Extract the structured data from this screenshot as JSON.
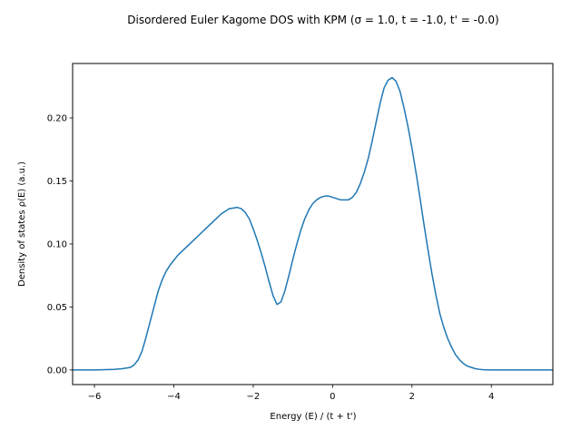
{
  "chart_data": {
    "type": "line",
    "title": "Disordered Euler Kagome DOS with KPM (σ = 1.0, t = -1.0, t' = -0.0)",
    "xlabel": "Energy (E) / (t + t')",
    "ylabel": "Density of states ρ(E) (a.u.)",
    "xlim": [
      -6.55,
      5.55
    ],
    "ylim": [
      -0.0116,
      0.2432
    ],
    "xticks": [
      -6,
      -4,
      -2,
      0,
      2,
      4
    ],
    "xtick_labels": [
      "−6",
      "−4",
      "−2",
      "0",
      "2",
      "4"
    ],
    "yticks": [
      0.0,
      0.05,
      0.1,
      0.15,
      0.2
    ],
    "ytick_labels": [
      "0.00",
      "0.05",
      "0.10",
      "0.15",
      "0.20"
    ],
    "grid": false,
    "legend": "none",
    "color": "#1f77b4",
    "series": [
      {
        "x": [
          -6.55,
          -6.0,
          -5.5,
          -5.3,
          -5.1,
          -5.0,
          -4.9,
          -4.8,
          -4.7,
          -4.6,
          -4.5,
          -4.4,
          -4.3,
          -4.2,
          -4.1,
          -4.0,
          -3.9,
          -3.8,
          -3.6,
          -3.4,
          -3.2,
          -3.0,
          -2.8,
          -2.6,
          -2.4,
          -2.3,
          -2.2,
          -2.1,
          -2.0,
          -1.9,
          -1.8,
          -1.7,
          -1.6,
          -1.5,
          -1.4,
          -1.3,
          -1.2,
          -1.1,
          -1.0,
          -0.9,
          -0.8,
          -0.7,
          -0.6,
          -0.5,
          -0.4,
          -0.3,
          -0.2,
          -0.1,
          0.0,
          0.1,
          0.2,
          0.3,
          0.4,
          0.5,
          0.6,
          0.7,
          0.8,
          0.9,
          1.0,
          1.1,
          1.2,
          1.3,
          1.4,
          1.5,
          1.6,
          1.7,
          1.8,
          1.9,
          2.0,
          2.1,
          2.2,
          2.3,
          2.4,
          2.5,
          2.6,
          2.7,
          2.8,
          2.9,
          3.0,
          3.1,
          3.2,
          3.3,
          3.4,
          3.5,
          3.6,
          3.7,
          3.8,
          3.9,
          4.0,
          4.1,
          4.2,
          4.4,
          4.6,
          4.8,
          5.0,
          5.55
        ],
        "y": [
          0.0,
          0.0,
          0.0005,
          0.001,
          0.002,
          0.004,
          0.008,
          0.015,
          0.026,
          0.038,
          0.05,
          0.062,
          0.071,
          0.078,
          0.083,
          0.087,
          0.091,
          0.094,
          0.1,
          0.106,
          0.112,
          0.118,
          0.124,
          0.128,
          0.129,
          0.128,
          0.125,
          0.12,
          0.112,
          0.103,
          0.093,
          0.082,
          0.07,
          0.059,
          0.052,
          0.054,
          0.063,
          0.075,
          0.088,
          0.1,
          0.111,
          0.12,
          0.127,
          0.132,
          0.135,
          0.137,
          0.138,
          0.138,
          0.137,
          0.136,
          0.135,
          0.135,
          0.135,
          0.137,
          0.141,
          0.148,
          0.157,
          0.168,
          0.182,
          0.197,
          0.212,
          0.224,
          0.23,
          0.232,
          0.229,
          0.221,
          0.208,
          0.193,
          0.176,
          0.157,
          0.137,
          0.116,
          0.096,
          0.077,
          0.06,
          0.045,
          0.034,
          0.025,
          0.018,
          0.012,
          0.008,
          0.005,
          0.003,
          0.002,
          0.001,
          0.0005,
          0.0002,
          0.0001,
          0.0,
          0.0,
          0.0,
          0.0,
          0.0,
          0.0,
          0.0,
          0.0
        ]
      }
    ]
  }
}
